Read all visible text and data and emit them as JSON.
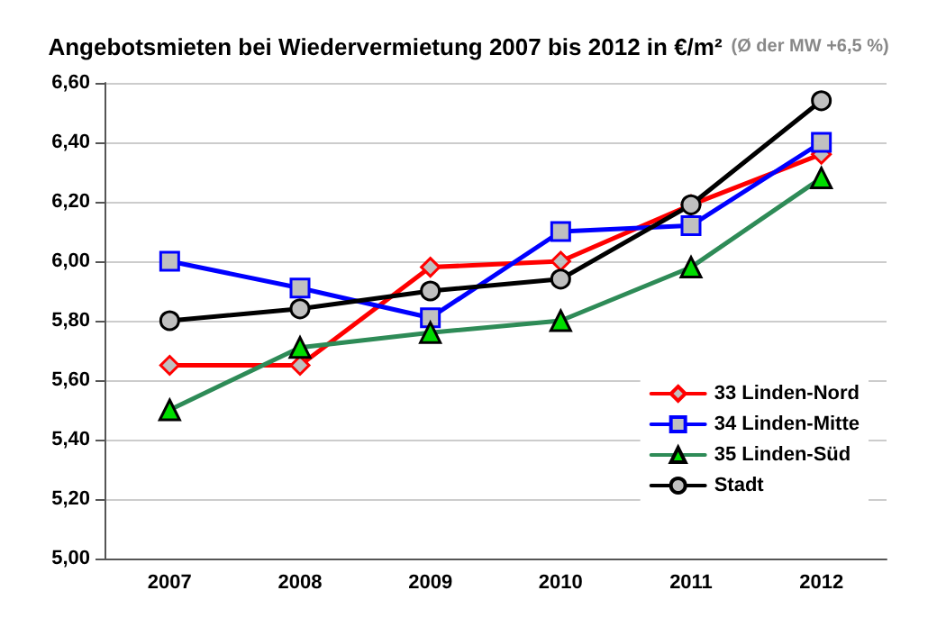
{
  "chart_data": {
    "type": "line",
    "title": "Angebotsmieten bei Wiedervermietung 2007 bis 2012 in €/m²",
    "subtitle": "(Ø der MW +6,5 %)",
    "categories": [
      "2007",
      "2008",
      "2009",
      "2010",
      "2011",
      "2012"
    ],
    "series": [
      {
        "name": "33 Linden-Nord",
        "color": "#ff0000",
        "marker": "diamond",
        "values": [
          5.65,
          5.65,
          5.98,
          6.0,
          6.19,
          6.36
        ]
      },
      {
        "name": "34 Linden-Mitte",
        "color": "#0000ff",
        "marker": "square",
        "values": [
          6.0,
          5.91,
          5.81,
          6.1,
          6.12,
          6.4
        ]
      },
      {
        "name": "35 Linden-Süd",
        "color": "#2e8b57",
        "marker": "triangle",
        "values": [
          5.5,
          5.71,
          5.76,
          5.8,
          5.98,
          6.28
        ]
      },
      {
        "name": "Stadt",
        "color": "#000000",
        "marker": "circle",
        "values": [
          5.8,
          5.84,
          5.9,
          5.94,
          6.19,
          6.54
        ]
      }
    ],
    "ylim": [
      5.0,
      6.6
    ],
    "yticks": [
      {
        "value": 5.0,
        "label": "5,00"
      },
      {
        "value": 5.2,
        "label": "5,20"
      },
      {
        "value": 5.4,
        "label": "5,40"
      },
      {
        "value": 5.6,
        "label": "5,60"
      },
      {
        "value": 5.8,
        "label": "5,80"
      },
      {
        "value": 6.0,
        "label": "6,00"
      },
      {
        "value": 6.2,
        "label": "6,20"
      },
      {
        "value": 6.4,
        "label": "6,40"
      },
      {
        "value": 6.6,
        "label": "6,60"
      }
    ],
    "grid": "y",
    "legend": "bottom right",
    "line_style": "solid"
  }
}
